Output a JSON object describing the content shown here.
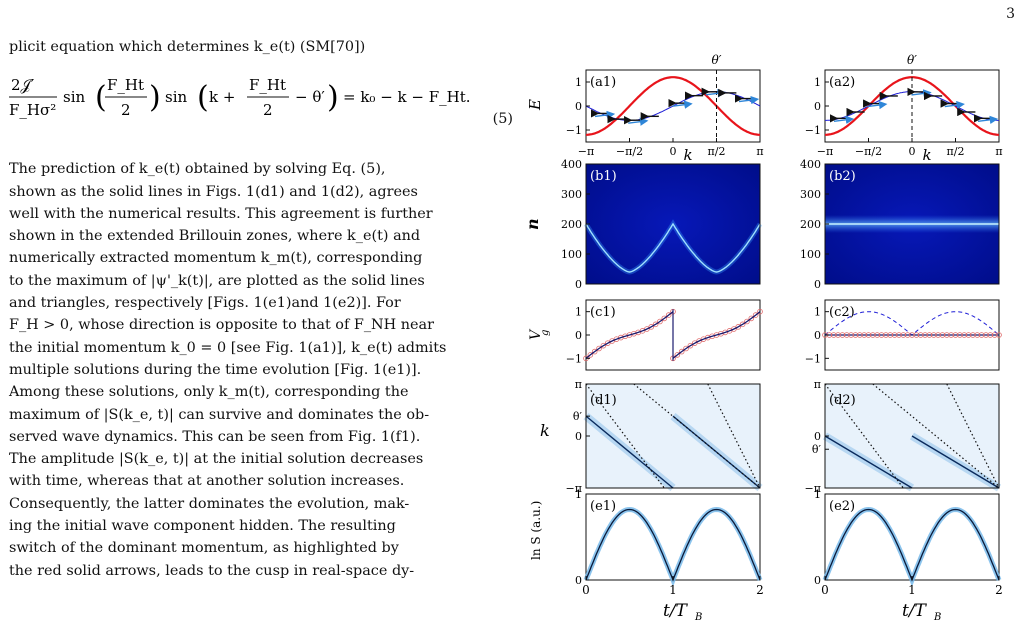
{
  "page_number": "3",
  "text": {
    "intro_line": "plicit equation which determines k_e(t) (SM[70])",
    "equation_number": "(5)",
    "body_lines": [
      "The prediction of k_e(t) obtained by solving Eq. (5),",
      "shown as the solid lines in Figs. 1(d1) and 1(d2), agrees",
      "well with the numerical results. This agreement is further",
      "shown in the extended Brillouin zones, where k_e(t) and",
      "numerically extracted momentum k_m(t), corresponding",
      "to the maximum of |ψ'_k(t)|, are plotted as the solid lines",
      "and triangles, respectively [Figs. 1(e1)and 1(e2)]. For",
      "F_H > 0, whose direction is opposite to that of F_NH near",
      "the initial momentum k_0 = 0 [see Fig. 1(a1)], k_e(t) admits",
      "multiple solutions during the time evolution [Fig. 1(e1)].",
      "Among these solutions, only k_m(t), corresponding the",
      "maximum of |S(k_e, t)| can survive and dominates the ob-",
      "served wave dynamics. This can be seen from Fig. 1(f1).",
      "The amplitude |S(k_e, t)| at the initial solution decreases",
      "with time, whereas that at another solution increases.",
      "Consequently, the latter dominates the evolution, mak-",
      "ing the initial wave component hidden. The resulting",
      "switch of the dominant momentum, as highlighted by",
      "the red solid arrows, leads to the cusp in real-space dy-"
    ]
  },
  "equation": {
    "frac1_num": "2𝒥′",
    "frac1_den": "F_Hσ²",
    "sin": "sin",
    "arg1_num": "F_Ht",
    "arg1_den": "2",
    "arg2_prefix": "k +",
    "arg2_num": "F_Ht",
    "arg2_den": "2",
    "arg2_suffix": "− θ′",
    "rhs": "= k₀ − k − F_Ht."
  },
  "figure": {
    "panel_labels": [
      "(a1)",
      "(a2)",
      "(b1)",
      "(b2)",
      "(c1)",
      "(c2)",
      "(d1)",
      "(d2)",
      "(e1)",
      "(e2)"
    ],
    "theta_label": "θ′",
    "ylabels": {
      "a": "E",
      "b": "n",
      "c": "V",
      "c_sub": "g",
      "d": "k",
      "e": "ln S (a.u.)"
    },
    "xlabel_k": "k",
    "xlabel_t": "t/T",
    "xlabel_t_sub": "B",
    "a_xticks": [
      "−π",
      "−π/2",
      "0",
      "π/2",
      "π"
    ],
    "a_yticks": [
      "1",
      "0",
      "−1"
    ],
    "b_yticks": [
      "400",
      "300",
      "200",
      "100",
      "0"
    ],
    "c_yticks": [
      "1",
      "0",
      "−1"
    ],
    "d1_yticks": [
      "π",
      "θ′",
      "0",
      "−π"
    ],
    "d2_yticks": [
      "π",
      "0",
      "θ′",
      "−π"
    ],
    "e_yticks": [
      "1",
      "0"
    ],
    "t_xticks": [
      "0",
      "1",
      "2"
    ],
    "colors": {
      "red": "#e8141b",
      "blue_line": "#1f1fd6",
      "arrow_blue": "#2f86d8",
      "dark_blue": "#00007e",
      "navy": "#0a2a5c",
      "marker": "#e06a6a"
    }
  },
  "chart_data": [
    {
      "panel": "a1",
      "type": "line",
      "series": [
        {
          "values": "1.2·cos(k)"
        },
        {
          "values": "0.6·cos(k − π/2)"
        }
      ],
      "xlim": [
        -3.1416,
        3.1416
      ],
      "ylim": [
        -1.5,
        1.5
      ],
      "theta_prime": 1.5708
    },
    {
      "panel": "a2",
      "type": "line",
      "series": [
        {
          "values": "1.2·cos(k)"
        },
        {
          "values": "0.6·cos(k)"
        }
      ],
      "xlim": [
        -3.1416,
        3.1416
      ],
      "ylim": [
        -1.5,
        1.5
      ],
      "theta_prime": 0
    },
    {
      "panel": "b1",
      "type": "heatmap",
      "ylim": [
        0,
        400
      ],
      "xlim": [
        0,
        2
      ]
    },
    {
      "panel": "b2",
      "type": "heatmap",
      "ylim": [
        0,
        400
      ],
      "xlim": [
        0,
        2
      ],
      "band_center": 200
    },
    {
      "panel": "c1",
      "type": "line",
      "xlim": [
        0,
        2
      ],
      "ylim": [
        -1.5,
        1.5
      ]
    },
    {
      "panel": "c2",
      "type": "line",
      "xlim": [
        0,
        2
      ],
      "ylim": [
        -1.5,
        1.5
      ]
    },
    {
      "panel": "d1",
      "type": "heatmap",
      "xlim": [
        0,
        2
      ],
      "ylim": [
        -3.1416,
        3.1416
      ]
    },
    {
      "panel": "d2",
      "type": "heatmap",
      "xlim": [
        0,
        2
      ],
      "ylim": [
        -3.1416,
        3.1416
      ]
    },
    {
      "panel": "e1",
      "type": "line",
      "xlim": [
        0,
        2
      ],
      "ylim": [
        0,
        1
      ]
    },
    {
      "panel": "e2",
      "type": "line",
      "xlim": [
        0,
        2
      ],
      "ylim": [
        0,
        1
      ]
    }
  ]
}
